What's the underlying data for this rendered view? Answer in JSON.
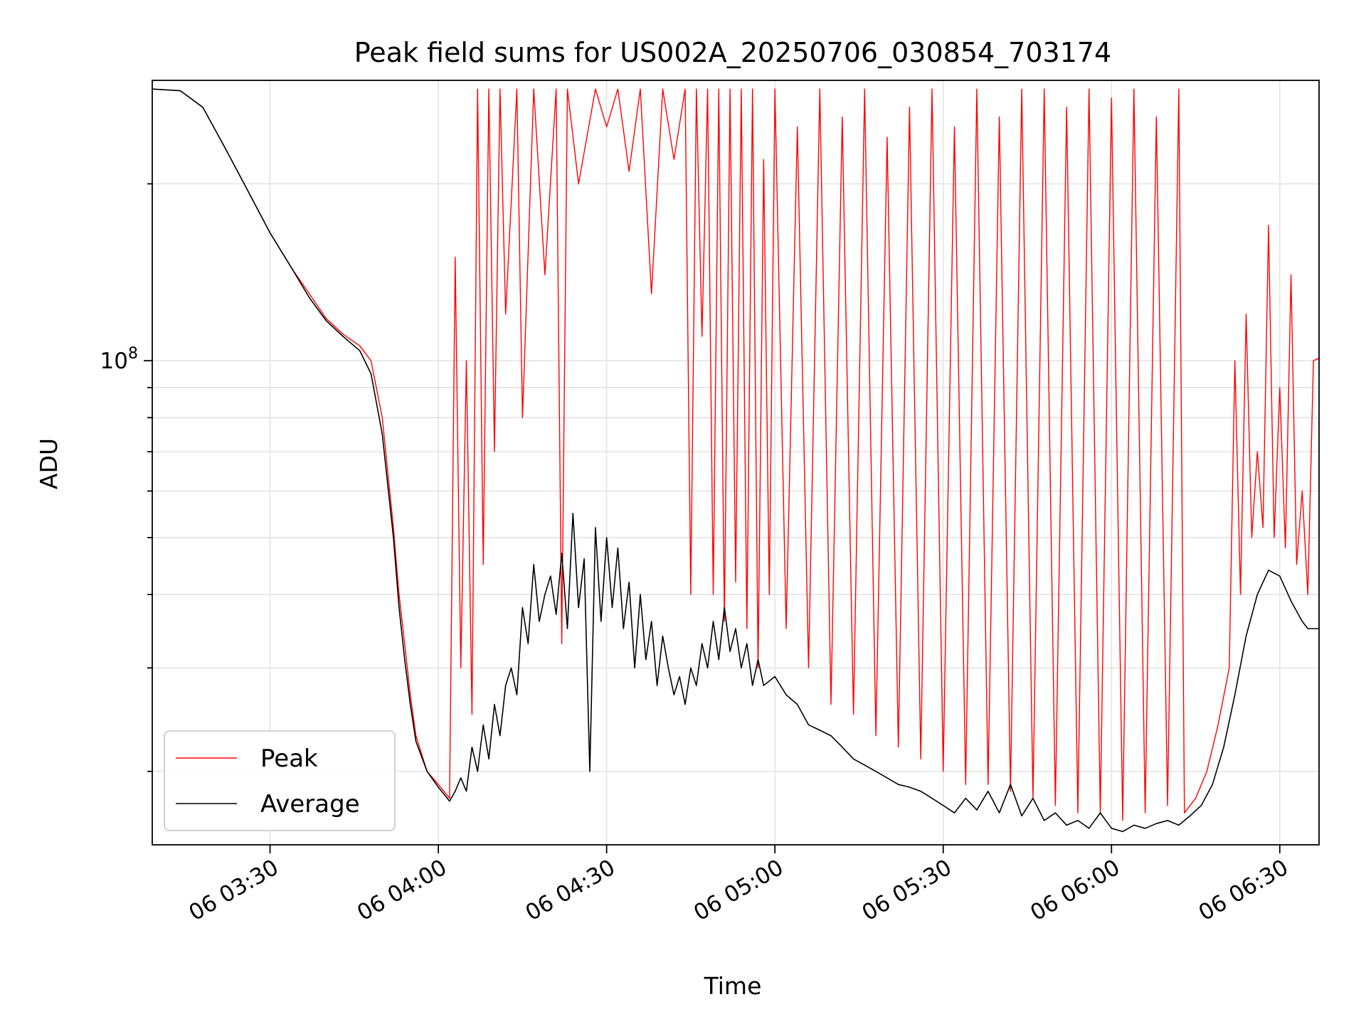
{
  "chart_data": {
    "type": "line",
    "title": "Peak field sums for US002A_20250706_030854_703174",
    "xlabel": "Time",
    "ylabel": "ADU",
    "x_is_time": true,
    "xlim": [
      "03:09",
      "06:37"
    ],
    "x_ticks": [
      {
        "value": "03:30",
        "label": "06 03:30"
      },
      {
        "value": "04:00",
        "label": "06 04:00"
      },
      {
        "value": "04:30",
        "label": "06 04:30"
      },
      {
        "value": "05:00",
        "label": "06 05:00"
      },
      {
        "value": "05:30",
        "label": "06 05:30"
      },
      {
        "value": "06:00",
        "label": "06 06:00"
      },
      {
        "value": "06:30",
        "label": "06 06:30"
      }
    ],
    "y_scale": "log",
    "ylim": [
      15000000,
      300000000
    ],
    "y_ticks_major": [
      {
        "value": 100000000,
        "base": "10",
        "exp": "8"
      }
    ],
    "y_ticks_minor": [
      20000000,
      30000000,
      40000000,
      50000000,
      60000000,
      70000000,
      80000000,
      90000000,
      200000000
    ],
    "grid": true,
    "legend_position": "lower-left",
    "series": [
      {
        "name": "Peak",
        "color": "#ff0000",
        "points": [
          [
            "03:09",
            290000000
          ],
          [
            "03:14",
            288000000
          ],
          [
            "03:18",
            270000000
          ],
          [
            "03:22",
            230000000
          ],
          [
            "03:26",
            195000000
          ],
          [
            "03:30",
            165000000
          ],
          [
            "03:34",
            143000000
          ],
          [
            "03:37",
            130000000
          ],
          [
            "03:40",
            118000000
          ],
          [
            "03:43",
            111000000
          ],
          [
            "03:46",
            106000000
          ],
          [
            "03:48",
            100000000
          ],
          [
            "03:50",
            80000000
          ],
          [
            "03:52",
            52000000
          ],
          [
            "03:53",
            40000000
          ],
          [
            "03:54",
            33000000
          ],
          [
            "03:55",
            27000000
          ],
          [
            "03:56",
            23000000
          ],
          [
            "03:58",
            20000000
          ],
          [
            "04:00",
            19000000
          ],
          [
            "04:02",
            18000000
          ],
          [
            "04:03",
            150000000
          ],
          [
            "04:04",
            30000000
          ],
          [
            "04:05",
            100000000
          ],
          [
            "04:06",
            25000000
          ],
          [
            "04:07",
            290000000
          ],
          [
            "04:08",
            45000000
          ],
          [
            "04:09",
            290000000
          ],
          [
            "04:10",
            70000000
          ],
          [
            "04:11",
            290000000
          ],
          [
            "04:12",
            120000000
          ],
          [
            "04:14",
            290000000
          ],
          [
            "04:15",
            80000000
          ],
          [
            "04:17",
            290000000
          ],
          [
            "04:19",
            140000000
          ],
          [
            "04:21",
            290000000
          ],
          [
            "04:22",
            33000000
          ],
          [
            "04:23",
            290000000
          ],
          [
            "04:25",
            200000000
          ],
          [
            "04:28",
            290000000
          ],
          [
            "04:30",
            250000000
          ],
          [
            "04:32",
            290000000
          ],
          [
            "04:34",
            210000000
          ],
          [
            "04:36",
            290000000
          ],
          [
            "04:38",
            130000000
          ],
          [
            "04:40",
            290000000
          ],
          [
            "04:42",
            220000000
          ],
          [
            "04:44",
            290000000
          ],
          [
            "04:45",
            40000000
          ],
          [
            "04:46",
            290000000
          ],
          [
            "04:47",
            110000000
          ],
          [
            "04:48",
            290000000
          ],
          [
            "04:49",
            40000000
          ],
          [
            "04:50",
            290000000
          ],
          [
            "04:51",
            36000000
          ],
          [
            "04:52",
            290000000
          ],
          [
            "04:53",
            42000000
          ],
          [
            "04:54",
            290000000
          ],
          [
            "04:55",
            35000000
          ],
          [
            "04:56",
            290000000
          ],
          [
            "04:57",
            30000000
          ],
          [
            "04:58",
            220000000
          ],
          [
            "04:59",
            40000000
          ],
          [
            "05:00",
            290000000
          ],
          [
            "05:02",
            35000000
          ],
          [
            "05:04",
            250000000
          ],
          [
            "05:06",
            30000000
          ],
          [
            "05:08",
            290000000
          ],
          [
            "05:10",
            26000000
          ],
          [
            "05:12",
            260000000
          ],
          [
            "05:14",
            25000000
          ],
          [
            "05:16",
            290000000
          ],
          [
            "05:18",
            23000000
          ],
          [
            "05:20",
            240000000
          ],
          [
            "05:22",
            22000000
          ],
          [
            "05:24",
            270000000
          ],
          [
            "05:26",
            21000000
          ],
          [
            "05:28",
            290000000
          ],
          [
            "05:30",
            20000000
          ],
          [
            "05:32",
            250000000
          ],
          [
            "05:34",
            19000000
          ],
          [
            "05:36",
            290000000
          ],
          [
            "05:38",
            19000000
          ],
          [
            "05:40",
            260000000
          ],
          [
            "05:42",
            18500000
          ],
          [
            "05:44",
            290000000
          ],
          [
            "05:46",
            18000000
          ],
          [
            "05:48",
            290000000
          ],
          [
            "05:50",
            17500000
          ],
          [
            "05:52",
            270000000
          ],
          [
            "05:54",
            17000000
          ],
          [
            "05:56",
            290000000
          ],
          [
            "05:58",
            17000000
          ],
          [
            "06:00",
            280000000
          ],
          [
            "06:02",
            16500000
          ],
          [
            "06:04",
            290000000
          ],
          [
            "06:06",
            17000000
          ],
          [
            "06:08",
            260000000
          ],
          [
            "06:10",
            17500000
          ],
          [
            "06:12",
            290000000
          ],
          [
            "06:13",
            17000000
          ],
          [
            "06:15",
            18000000
          ],
          [
            "06:17",
            20000000
          ],
          [
            "06:19",
            24000000
          ],
          [
            "06:21",
            30000000
          ],
          [
            "06:22",
            100000000
          ],
          [
            "06:23",
            40000000
          ],
          [
            "06:24",
            120000000
          ],
          [
            "06:25",
            50000000
          ],
          [
            "06:26",
            70000000
          ],
          [
            "06:27",
            52000000
          ],
          [
            "06:28",
            170000000
          ],
          [
            "06:29",
            50000000
          ],
          [
            "06:30",
            90000000
          ],
          [
            "06:31",
            48000000
          ],
          [
            "06:32",
            140000000
          ],
          [
            "06:33",
            45000000
          ],
          [
            "06:34",
            60000000
          ],
          [
            "06:35",
            40000000
          ],
          [
            "06:36",
            100000000
          ],
          [
            "06:37",
            101000000
          ]
        ]
      },
      {
        "name": "Average",
        "color": "#000000",
        "points": [
          [
            "03:09",
            290000000
          ],
          [
            "03:14",
            288000000
          ],
          [
            "03:18",
            270000000
          ],
          [
            "03:22",
            230000000
          ],
          [
            "03:26",
            195000000
          ],
          [
            "03:30",
            165000000
          ],
          [
            "03:34",
            143000000
          ],
          [
            "03:37",
            128000000
          ],
          [
            "03:40",
            117000000
          ],
          [
            "03:43",
            110000000
          ],
          [
            "03:46",
            104000000
          ],
          [
            "03:48",
            95000000
          ],
          [
            "03:50",
            75000000
          ],
          [
            "03:52",
            50000000
          ],
          [
            "03:53",
            38000000
          ],
          [
            "03:54",
            31000000
          ],
          [
            "03:55",
            26000000
          ],
          [
            "03:56",
            22500000
          ],
          [
            "03:58",
            20000000
          ],
          [
            "04:00",
            18800000
          ],
          [
            "04:02",
            17800000
          ],
          [
            "04:03",
            18500000
          ],
          [
            "04:04",
            19500000
          ],
          [
            "04:05",
            18500000
          ],
          [
            "04:06",
            22000000
          ],
          [
            "04:07",
            20000000
          ],
          [
            "04:08",
            24000000
          ],
          [
            "04:09",
            21000000
          ],
          [
            "04:10",
            26000000
          ],
          [
            "04:11",
            23000000
          ],
          [
            "04:12",
            28000000
          ],
          [
            "04:13",
            30000000
          ],
          [
            "04:14",
            27000000
          ],
          [
            "04:15",
            38000000
          ],
          [
            "04:16",
            33000000
          ],
          [
            "04:17",
            45000000
          ],
          [
            "04:18",
            36000000
          ],
          [
            "04:19",
            40000000
          ],
          [
            "04:20",
            43000000
          ],
          [
            "04:21",
            37000000
          ],
          [
            "04:22",
            47000000
          ],
          [
            "04:23",
            35000000
          ],
          [
            "04:24",
            55000000
          ],
          [
            "04:25",
            38000000
          ],
          [
            "04:26",
            46000000
          ],
          [
            "04:27",
            20000000
          ],
          [
            "04:28",
            52000000
          ],
          [
            "04:29",
            36000000
          ],
          [
            "04:30",
            50000000
          ],
          [
            "04:31",
            38000000
          ],
          [
            "04:32",
            48000000
          ],
          [
            "04:33",
            35000000
          ],
          [
            "04:34",
            42000000
          ],
          [
            "04:35",
            30000000
          ],
          [
            "04:36",
            40000000
          ],
          [
            "04:37",
            31000000
          ],
          [
            "04:38",
            36000000
          ],
          [
            "04:39",
            28000000
          ],
          [
            "04:40",
            34000000
          ],
          [
            "04:41",
            30000000
          ],
          [
            "04:42",
            27000000
          ],
          [
            "04:43",
            29000000
          ],
          [
            "04:44",
            26000000
          ],
          [
            "04:45",
            30000000
          ],
          [
            "04:46",
            28000000
          ],
          [
            "04:47",
            33000000
          ],
          [
            "04:48",
            30000000
          ],
          [
            "04:49",
            36000000
          ],
          [
            "04:50",
            31000000
          ],
          [
            "04:51",
            38000000
          ],
          [
            "04:52",
            32000000
          ],
          [
            "04:53",
            35000000
          ],
          [
            "04:54",
            30000000
          ],
          [
            "04:55",
            33000000
          ],
          [
            "04:56",
            28000000
          ],
          [
            "04:57",
            31000000
          ],
          [
            "04:58",
            28000000
          ],
          [
            "05:00",
            29000000
          ],
          [
            "05:02",
            27000000
          ],
          [
            "05:04",
            26000000
          ],
          [
            "05:06",
            24000000
          ],
          [
            "05:08",
            23500000
          ],
          [
            "05:10",
            23000000
          ],
          [
            "05:12",
            22000000
          ],
          [
            "05:14",
            21000000
          ],
          [
            "05:16",
            20500000
          ],
          [
            "05:18",
            20000000
          ],
          [
            "05:20",
            19500000
          ],
          [
            "05:22",
            19000000
          ],
          [
            "05:24",
            18800000
          ],
          [
            "05:26",
            18500000
          ],
          [
            "05:28",
            18000000
          ],
          [
            "05:30",
            17500000
          ],
          [
            "05:32",
            17000000
          ],
          [
            "05:34",
            18000000
          ],
          [
            "05:36",
            17200000
          ],
          [
            "05:38",
            18500000
          ],
          [
            "05:40",
            17000000
          ],
          [
            "05:42",
            19000000
          ],
          [
            "05:44",
            16800000
          ],
          [
            "05:46",
            18000000
          ],
          [
            "05:48",
            16500000
          ],
          [
            "05:50",
            17000000
          ],
          [
            "05:52",
            16200000
          ],
          [
            "05:54",
            16500000
          ],
          [
            "05:56",
            16000000
          ],
          [
            "05:58",
            17000000
          ],
          [
            "06:00",
            16000000
          ],
          [
            "06:02",
            15800000
          ],
          [
            "06:04",
            16200000
          ],
          [
            "06:06",
            16000000
          ],
          [
            "06:08",
            16300000
          ],
          [
            "06:10",
            16500000
          ],
          [
            "06:12",
            16200000
          ],
          [
            "06:14",
            16800000
          ],
          [
            "06:16",
            17500000
          ],
          [
            "06:18",
            19000000
          ],
          [
            "06:20",
            22000000
          ],
          [
            "06:22",
            27000000
          ],
          [
            "06:24",
            34000000
          ],
          [
            "06:26",
            40000000
          ],
          [
            "06:28",
            44000000
          ],
          [
            "06:30",
            43000000
          ],
          [
            "06:32",
            39000000
          ],
          [
            "06:34",
            36000000
          ],
          [
            "06:35",
            35000000
          ],
          [
            "06:37",
            35000000
          ]
        ]
      }
    ]
  }
}
